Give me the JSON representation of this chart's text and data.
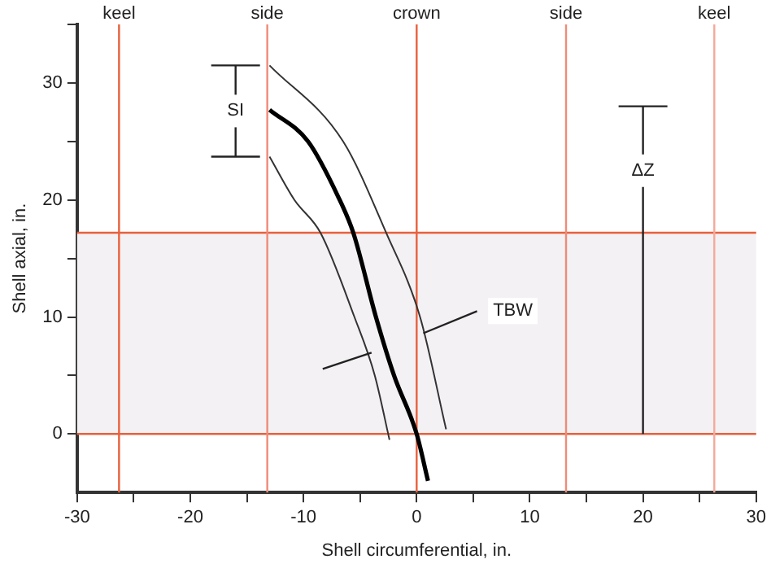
{
  "chart_data": {
    "type": "line",
    "xlabel": "Shell circumferential, in.",
    "ylabel": "Shell axial, in.",
    "xlim": [
      -30,
      30
    ],
    "ylim": [
      -5,
      35
    ],
    "xticks": [
      -30,
      {
        "value": -25,
        "label": null
      },
      -20,
      {
        "value": -15,
        "label": null
      },
      -10,
      {
        "value": -5,
        "label": null
      },
      0,
      {
        "value": 5,
        "label": null
      },
      10,
      {
        "value": 15,
        "label": null
      },
      20,
      {
        "value": 25,
        "label": null
      },
      30
    ],
    "yticks": [
      0,
      {
        "value": 5,
        "label": null
      },
      10,
      {
        "value": 15,
        "label": null
      },
      20,
      {
        "value": 25,
        "label": null
      },
      30,
      {
        "value": 35,
        "label": null
      }
    ],
    "grid": false,
    "legend": false,
    "marker": "none",
    "line_style": "solid",
    "series": [
      {
        "color": "#333333",
        "x": [
          -13,
          -6.5,
          -2.7,
          0.3,
          2.6
        ],
        "values": [
          31.5,
          25,
          17.2,
          10,
          0.4
        ]
      },
      {
        "color": "#000000",
        "x": [
          -13,
          -9.6,
          -6.9,
          -5.6,
          -3.6,
          -2,
          0,
          1
        ],
        "values": [
          27.7,
          25,
          20.2,
          17.2,
          10,
          5,
          0,
          -4
        ]
      },
      {
        "color": "#333333",
        "x": [
          -13,
          -10.8,
          -8.5,
          -5.5,
          -3.7,
          -2.4
        ],
        "values": [
          23.7,
          20,
          17.2,
          10,
          5,
          -0.5
        ]
      }
    ],
    "ref_lines": [
      {
        "axis": "y",
        "value": 0,
        "color": "#e8603c"
      },
      {
        "axis": "y",
        "value": 17.2,
        "color": "#e8603c"
      },
      {
        "axis": "x",
        "value": -26.3,
        "label": "keel",
        "color": "#e8603c"
      },
      {
        "axis": "x",
        "value": -13.2,
        "label": "side",
        "color": "#f08a78"
      },
      {
        "axis": "x",
        "value": 0,
        "label": "crown",
        "color": "#e8603c"
      },
      {
        "axis": "x",
        "value": 13.2,
        "label": "side",
        "color": "#f08a78"
      },
      {
        "axis": "x",
        "value": 26.3,
        "label": "keel",
        "color": "#f5a89a"
      }
    ],
    "bands": [
      {
        "axis": "y",
        "from": 0,
        "to": 17.2,
        "color": "#f3f1f3"
      }
    ],
    "annotations": [
      {
        "text": "SI",
        "x": -16,
        "y": 27.6
      },
      {
        "text": "ΔZ",
        "x": 20,
        "y": 22.5
      },
      {
        "text": "TBW",
        "x": 8.5,
        "y": 10.5
      }
    ]
  }
}
